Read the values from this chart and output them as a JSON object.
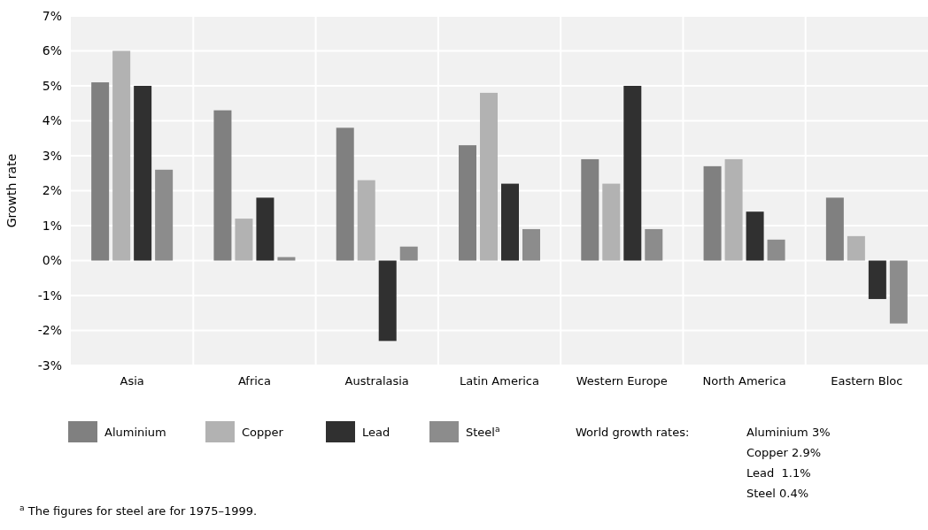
{
  "chart_data": {
    "type": "bar",
    "ylabel": "Growth rate",
    "categories": [
      "Asia",
      "Africa",
      "Australasia",
      "Latin America",
      "Western Europe",
      "North America",
      "Eastern Bloc"
    ],
    "series": [
      {
        "name": "Aluminium",
        "color": "#808080",
        "values": [
          5.1,
          4.3,
          3.8,
          3.3,
          2.9,
          2.7,
          1.8
        ]
      },
      {
        "name": "Copper",
        "color": "#b2b2b2",
        "values": [
          6.0,
          1.2,
          2.3,
          4.8,
          2.2,
          2.9,
          0.7
        ]
      },
      {
        "name": "Lead",
        "color": "#303030",
        "values": [
          5.0,
          1.8,
          -2.3,
          2.2,
          5.0,
          1.4,
          -1.1
        ]
      },
      {
        "name": "Steel$^{a}$",
        "color": "#8c8c8c",
        "values": [
          2.6,
          0.1,
          0.4,
          0.9,
          0.9,
          0.6,
          -1.8
        ]
      }
    ],
    "ylim": [
      -3,
      7
    ],
    "yticks": [
      {
        "value": -3,
        "label": "-3%"
      },
      {
        "value": -2,
        "label": "-2%"
      },
      {
        "value": -1,
        "label": "-1%"
      },
      {
        "value": 0,
        "label": "0%"
      },
      {
        "value": 1,
        "label": "1%"
      },
      {
        "value": 2,
        "label": "2%"
      },
      {
        "value": 3,
        "label": "3%"
      },
      {
        "value": 4,
        "label": "4%"
      },
      {
        "value": 5,
        "label": "5%"
      },
      {
        "value": 6,
        "label": "6%"
      },
      {
        "value": 7,
        "label": "7%"
      }
    ],
    "grid": true,
    "legend": "bottom",
    "annotations": [
      "World growth rates:",
      "Aluminium 3%",
      "Copper 2.9%",
      "Lead  1.1%",
      "Steel 0.4%",
      "$^{a}$ The figures for steel are for 1975–1999."
    ]
  }
}
